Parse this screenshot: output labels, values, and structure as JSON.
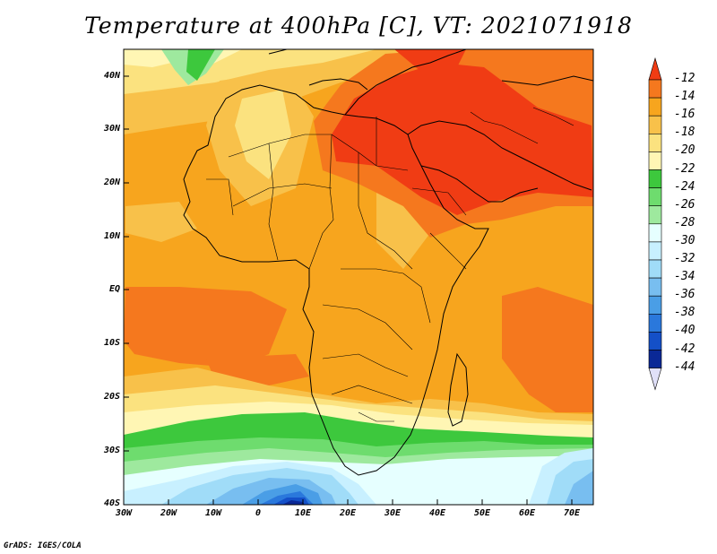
{
  "title": "Temperature at 400hPa [C], VT: 2021071918",
  "footer": "GrADS: IGES/COLA",
  "axes": {
    "lat_labels": [
      "40N",
      "30N",
      "20N",
      "10N",
      "EQ",
      "10S",
      "20S",
      "30S",
      "40S"
    ],
    "lon_labels": [
      "30W",
      "20W",
      "10W",
      "0",
      "10E",
      "20E",
      "30E",
      "40E",
      "50E",
      "60E",
      "70E"
    ]
  },
  "colorbar": {
    "labels": [
      "-12",
      "-14",
      "-16",
      "-18",
      "-20",
      "-22",
      "-24",
      "-26",
      "-28",
      "-30",
      "-32",
      "-34",
      "-36",
      "-38",
      "-40",
      "-42",
      "-44"
    ],
    "colors": [
      "#f03c14",
      "#f5781e",
      "#f7a51e",
      "#f8c14a",
      "#fbe27f",
      "#fff6b4",
      "#3dc83d",
      "#6edc6e",
      "#9ee99e",
      "#e6ffff",
      "#c8f0ff",
      "#a0dcf8",
      "#78bef0",
      "#4a9ee6",
      "#2a78dc",
      "#1450c8",
      "#0a2896",
      "#e0e0f8"
    ]
  }
}
